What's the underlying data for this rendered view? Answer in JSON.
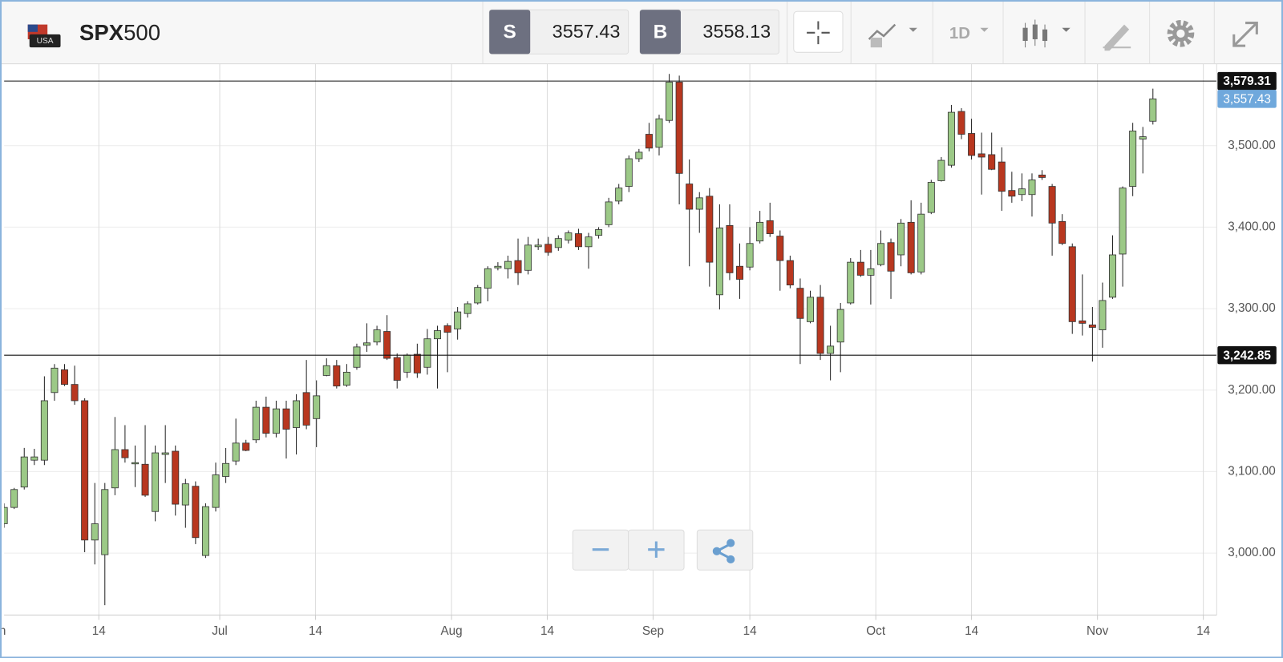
{
  "toolbar": {
    "flag_label": "USA",
    "symbol_prefix": "SPX",
    "symbol_suffix": "500",
    "sell_label": "S",
    "sell_price": 3557.43,
    "buy_label": "B",
    "buy_price": 3558.13,
    "interval": "1D"
  },
  "chart_data": {
    "type": "candlestick",
    "up_color": "#9cc987",
    "down_color": "#b8371f",
    "open": [
      3036,
      3056,
      3081,
      3114,
      3114,
      3197,
      3225,
      3207,
      3187,
      3016,
      2998,
      3080,
      3127,
      3110,
      3109,
      3051,
      3121,
      3125,
      3059,
      3082,
      2997,
      3056,
      3094,
      3113,
      3135,
      3139,
      3179,
      3147,
      3177,
      3154,
      3197,
      3165,
      3218,
      3230,
      3206,
      3228,
      3255,
      3259,
      3272,
      3240,
      3222,
      3244,
      3228,
      3263,
      3279,
      3275,
      3294,
      3307,
      3325,
      3350,
      3349,
      3359,
      3347,
      3376,
      3379,
      3375,
      3384,
      3392,
      3376,
      3390,
      3403,
      3432,
      3450,
      3484,
      3514,
      3498,
      3531,
      3578,
      3453,
      3422,
      3438,
      3317,
      3402,
      3352,
      3351,
      3383,
      3408,
      3389,
      3359,
      3325,
      3284,
      3314,
      3245,
      3259,
      3307,
      3357,
      3341,
      3354,
      3381,
      3366,
      3406,
      3345,
      3418,
      3457,
      3476,
      3542,
      3515,
      3490,
      3489,
      3480,
      3445,
      3440,
      3440,
      3464,
      3450,
      3407,
      3376,
      3285,
      3280,
      3274,
      3314,
      3367,
      3450,
      3508,
      3530
    ],
    "high": [
      3061,
      3080,
      3129,
      3128,
      3217,
      3232,
      3232,
      3230,
      3190,
      3086,
      3086,
      3167,
      3157,
      3132,
      3157,
      3132,
      3157,
      3132,
      3091,
      3088,
      3061,
      3111,
      3129,
      3165,
      3139,
      3187,
      3192,
      3187,
      3187,
      3195,
      3237,
      3212,
      3239,
      3237,
      3232,
      3257,
      3282,
      3279,
      3292,
      3245,
      3245,
      3257,
      3275,
      3279,
      3282,
      3302,
      3309,
      3329,
      3352,
      3357,
      3365,
      3386,
      3388,
      3386,
      3388,
      3390,
      3396,
      3398,
      3393,
      3400,
      3436,
      3453,
      3488,
      3496,
      3528,
      3538,
      3588,
      3586,
      3483,
      3443,
      3448,
      3428,
      3428,
      3380,
      3400,
      3420,
      3430,
      3396,
      3365,
      3337,
      3322,
      3329,
      3279,
      3307,
      3362,
      3372,
      3372,
      3396,
      3386,
      3410,
      3433,
      3430,
      3458,
      3486,
      3550,
      3546,
      3533,
      3516,
      3516,
      3498,
      3468,
      3466,
      3466,
      3470,
      3453,
      3416,
      3380,
      3342,
      3302,
      3332,
      3390,
      3450,
      3528,
      3523,
      3570
    ],
    "low": [
      3031,
      3054,
      3078,
      3108,
      3108,
      3187,
      3205,
      3182,
      3001,
      2986,
      2936,
      3071,
      3111,
      3081,
      3069,
      3039,
      3086,
      3046,
      3031,
      3011,
      2994,
      3051,
      3086,
      3108,
      3125,
      3135,
      3142,
      3142,
      3116,
      3121,
      3152,
      3130,
      3217,
      3202,
      3204,
      3225,
      3247,
      3255,
      3237,
      3202,
      3215,
      3215,
      3219,
      3202,
      3222,
      3262,
      3289,
      3305,
      3309,
      3347,
      3337,
      3329,
      3342,
      3372,
      3365,
      3371,
      3380,
      3372,
      3349,
      3386,
      3400,
      3428,
      3443,
      3480,
      3493,
      3488,
      3528,
      3428,
      3352,
      3393,
      3327,
      3299,
      3335,
      3312,
      3347,
      3380,
      3388,
      3322,
      3325,
      3232,
      3282,
      3237,
      3212,
      3222,
      3305,
      3339,
      3305,
      3352,
      3312,
      3352,
      3342,
      3342,
      3416,
      3456,
      3473,
      3508,
      3483,
      3440,
      3470,
      3420,
      3430,
      3432,
      3413,
      3458,
      3365,
      3378,
      3269,
      3267,
      3235,
      3252,
      3312,
      3327,
      3438,
      3466,
      3526
    ],
    "close": [
      3056,
      3078,
      3118,
      3118,
      3187,
      3227,
      3207,
      3187,
      3016,
      3036,
      3078,
      3127,
      3117,
      3111,
      3071,
      3123,
      3123,
      3060,
      3085,
      3019,
      3057,
      3096,
      3110,
      3135,
      3126,
      3179,
      3147,
      3177,
      3152,
      3187,
      3157,
      3193,
      3230,
      3205,
      3222,
      3253,
      3258,
      3274,
      3239,
      3212,
      3243,
      3221,
      3263,
      3273,
      3271,
      3296,
      3306,
      3326,
      3349,
      3352,
      3358,
      3344,
      3378,
      3378,
      3369,
      3386,
      3393,
      3376,
      3388,
      3397,
      3431,
      3448,
      3484,
      3492,
      3497,
      3533,
      3578,
      3466,
      3422,
      3436,
      3357,
      3399,
      3344,
      3336,
      3380,
      3406,
      3392,
      3359,
      3329,
      3288,
      3314,
      3245,
      3254,
      3299,
      3357,
      3341,
      3349,
      3380,
      3346,
      3405,
      3344,
      3416,
      3455,
      3482,
      3541,
      3514,
      3488,
      3486,
      3471,
      3444,
      3438,
      3447,
      3458,
      3461,
      3405,
      3380,
      3284,
      3282,
      3277,
      3310,
      3366,
      3448,
      3518,
      3511,
      3557.43
    ],
    "xlim": [
      0,
      120.33
    ],
    "xticks": [
      {
        "value": -0.8,
        "label": "Jun"
      },
      {
        "value": 9.4,
        "label": "14"
      },
      {
        "value": 21.4,
        "label": "Jul"
      },
      {
        "value": 30.9,
        "label": "14"
      },
      {
        "value": 44.4,
        "label": "Aug"
      },
      {
        "value": 53.9,
        "label": "14"
      },
      {
        "value": 64.4,
        "label": "Sep"
      },
      {
        "value": 74.0,
        "label": "14"
      },
      {
        "value": 86.5,
        "label": "Oct"
      },
      {
        "value": 96.0,
        "label": "14"
      },
      {
        "value": 108.5,
        "label": "Nov"
      },
      {
        "value": 119.0,
        "label": "14"
      }
    ],
    "ylim": [
      2924,
      3600.5
    ],
    "yticks": [
      {
        "value": 3000,
        "label": "3,000.00"
      },
      {
        "value": 3100,
        "label": "3,100.00"
      },
      {
        "value": 3200,
        "label": "3,200.00"
      },
      {
        "value": 3300,
        "label": "3,300.00"
      },
      {
        "value": 3400,
        "label": "3,400.00"
      },
      {
        "value": 3500,
        "label": "3,500.00"
      }
    ],
    "grid": true,
    "price_lines": [
      {
        "value": 3579.31,
        "label": "3,579.31"
      },
      {
        "value": 3242.85,
        "label": "3,242.85"
      }
    ],
    "current_price": {
      "value": 3557.43,
      "label": "3,557.43",
      "color": "#6fa8dc"
    }
  }
}
